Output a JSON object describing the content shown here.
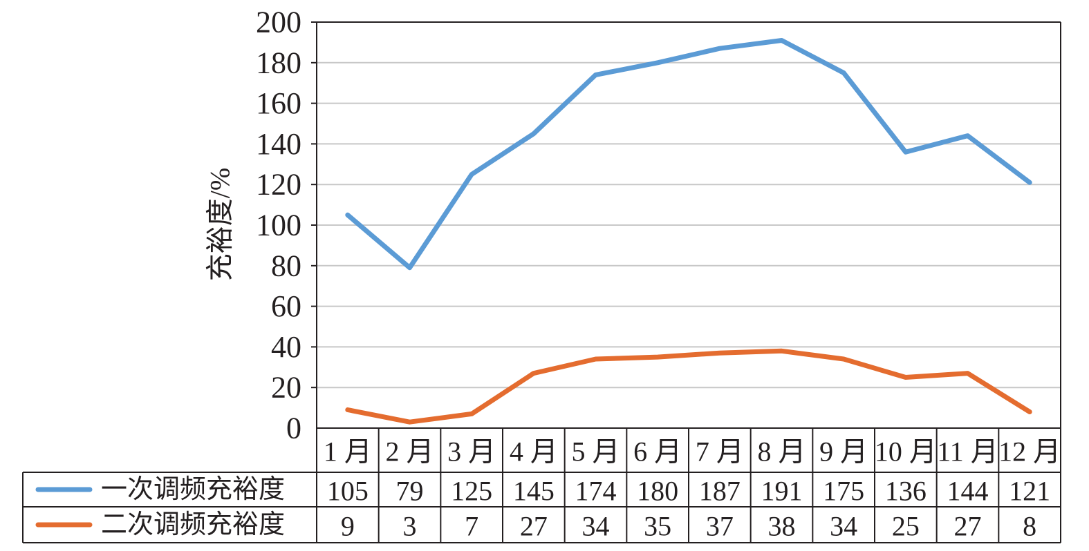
{
  "chart_data": {
    "type": "line",
    "categories": [
      "1 月",
      "2 月",
      "3 月",
      "4 月",
      "5 月",
      "6 月",
      "7 月",
      "8 月",
      "9 月",
      "10 月",
      "11 月",
      "12 月"
    ],
    "series": [
      {
        "name": "一次调频充裕度",
        "values": [
          105,
          79,
          125,
          145,
          174,
          180,
          187,
          191,
          175,
          136,
          144,
          121
        ],
        "color": "#5b9bd5"
      },
      {
        "name": "二次调频充裕度",
        "values": [
          9,
          3,
          7,
          27,
          34,
          35,
          37,
          38,
          34,
          25,
          27,
          8
        ],
        "color": "#e46c2f"
      }
    ],
    "ylabel": "充裕度/%",
    "ylim": [
      0,
      200
    ],
    "yticks": [
      "0",
      "20",
      "40",
      "60",
      "80",
      "100",
      "120",
      "140",
      "160",
      "180",
      "200"
    ],
    "grid": true,
    "legend": "data-table"
  }
}
